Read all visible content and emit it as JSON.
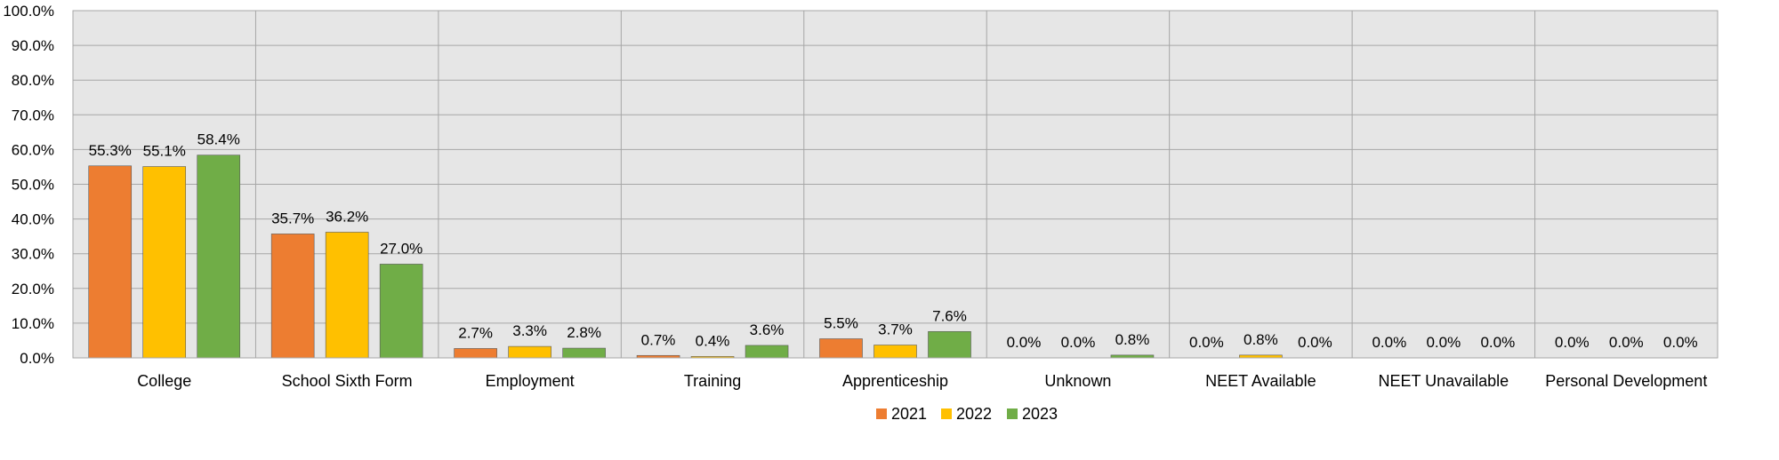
{
  "chart_data": {
    "type": "bar",
    "title": "",
    "xlabel": "",
    "ylabel": "",
    "ylim": [
      0,
      100
    ],
    "y_ticks": [
      "0.0%",
      "10.0%",
      "20.0%",
      "30.0%",
      "40.0%",
      "50.0%",
      "60.0%",
      "70.0%",
      "80.0%",
      "90.0%",
      "100.0%"
    ],
    "categories": [
      "College",
      "School Sixth Form",
      "Employment",
      "Training",
      "Apprenticeship",
      "Unknown",
      "NEET Available",
      "NEET Unavailable",
      "Personal Development"
    ],
    "series": [
      {
        "name": "2021",
        "color": "#ED7D31",
        "values": [
          55.3,
          35.7,
          2.7,
          0.7,
          5.5,
          0.0,
          0.0,
          0.0,
          0.0
        ],
        "labels": [
          "55.3%",
          "35.7%",
          "2.7%",
          "0.7%",
          "5.5%",
          "0.0%",
          "0.0%",
          "0.0%",
          "0.0%"
        ]
      },
      {
        "name": "2022",
        "color": "#FFC000",
        "values": [
          55.1,
          36.2,
          3.3,
          0.4,
          3.7,
          0.0,
          0.8,
          0.0,
          0.0
        ],
        "labels": [
          "55.1%",
          "36.2%",
          "3.3%",
          "0.4%",
          "3.7%",
          "0.0%",
          "0.8%",
          "0.0%",
          "0.0%"
        ]
      },
      {
        "name": "2023",
        "color": "#70AD47",
        "values": [
          58.4,
          27.0,
          2.8,
          3.6,
          7.6,
          0.8,
          0.0,
          0.0,
          0.0
        ],
        "labels": [
          "58.4%",
          "27.0%",
          "2.8%",
          "3.6%",
          "7.6%",
          "0.8%",
          "0.0%",
          "0.0%",
          "0.0%"
        ]
      }
    ],
    "grid": true,
    "plot_background": "#E6E6E6",
    "legend": "bottom"
  }
}
